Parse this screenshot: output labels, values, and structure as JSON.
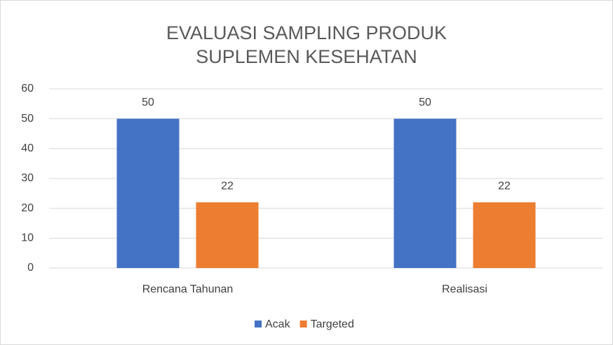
{
  "chart_data": {
    "type": "bar",
    "title": "EVALUASI SAMPLING PRODUK SUPLEMEN KESEHATAN",
    "categories": [
      "Rencana Tahunan",
      "Realisasi"
    ],
    "series": [
      {
        "name": "Acak",
        "color": "#4472c4",
        "values": [
          50,
          50
        ]
      },
      {
        "name": "Targeted",
        "color": "#ed7d31",
        "values": [
          22,
          22
        ]
      }
    ],
    "ylim": [
      0,
      60
    ],
    "yticks": [
      0,
      10,
      20,
      30,
      40,
      50,
      60
    ],
    "grid": true,
    "legend": "bottom"
  }
}
